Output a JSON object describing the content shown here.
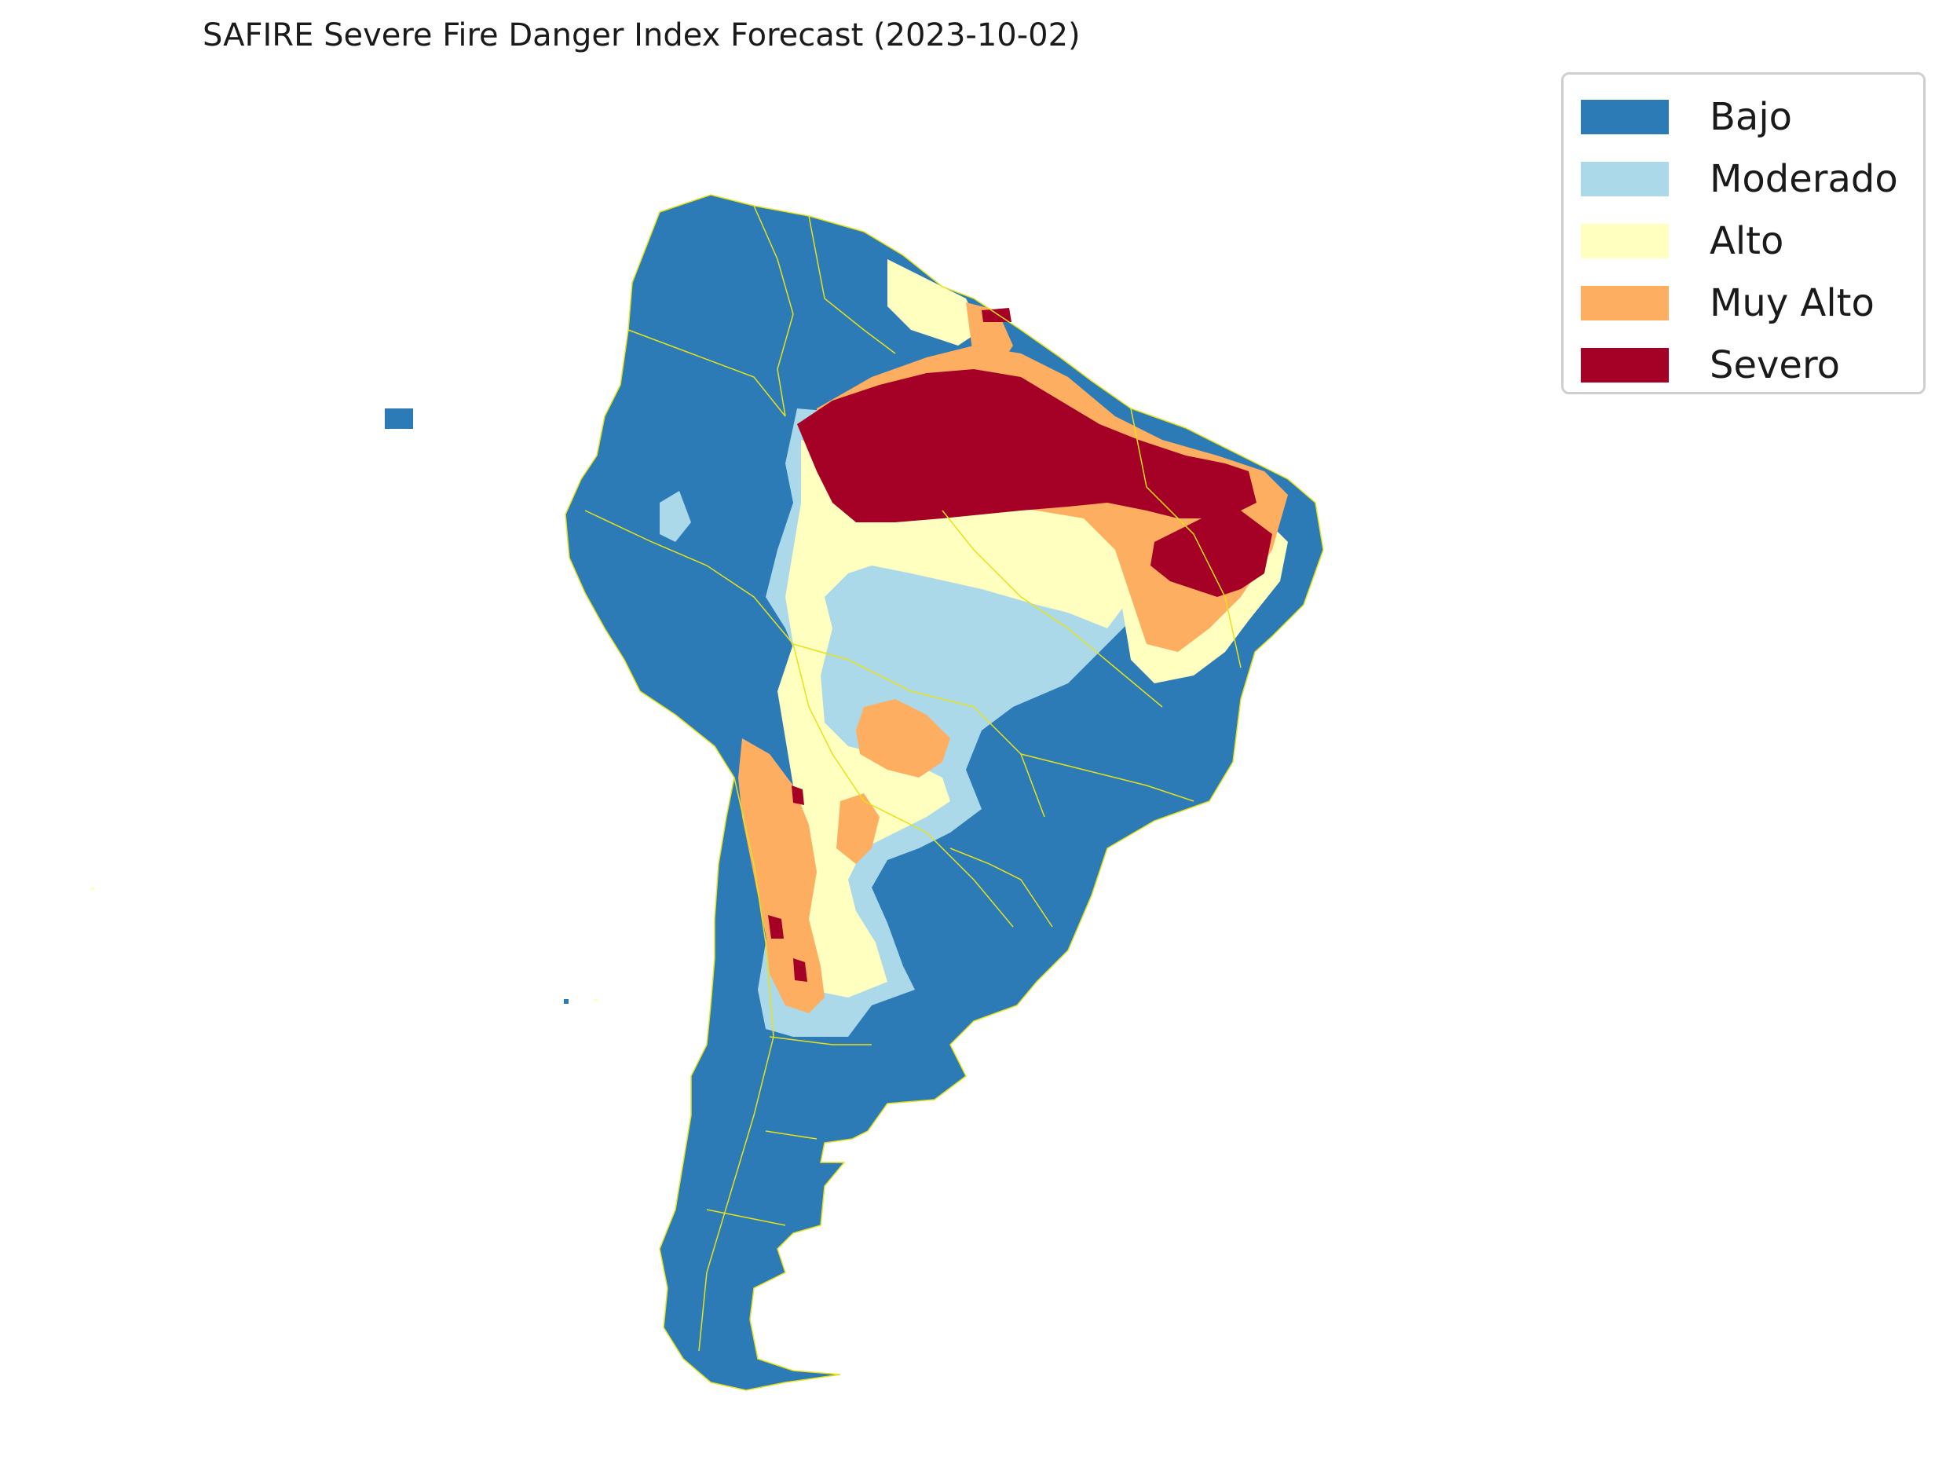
{
  "title": "SAFIRE Severe Fire Danger Index Forecast (2023-10-02)",
  "legend": {
    "items": [
      {
        "label": "Bajo",
        "color": "#2c7bb6"
      },
      {
        "label": "Moderado",
        "color": "#abd9e9"
      },
      {
        "label": "Alto",
        "color": "#ffffbf"
      },
      {
        "label": "Muy Alto",
        "color": "#fdae61"
      },
      {
        "label": "Severo",
        "color": "#a50026"
      }
    ]
  },
  "colors": {
    "bajo": "#2c7bb6",
    "moderado": "#abd9e9",
    "alto": "#ffffbf",
    "muy_alto": "#fdae61",
    "severo": "#a50026",
    "borders": "#e6e21a"
  }
}
